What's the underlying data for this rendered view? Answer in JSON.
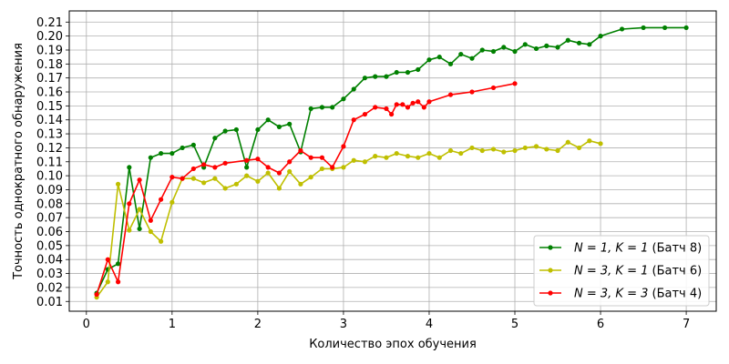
{
  "chart_data": {
    "type": "line",
    "xlabel": "Количество эпох обучения",
    "ylabel": "Точность однократного обнаружения",
    "xlim": [
      -0.2,
      7.35
    ],
    "ylim": [
      0.003,
      0.218
    ],
    "x_ticks": [
      0,
      1,
      2,
      3,
      4,
      5,
      6,
      7
    ],
    "y_ticks": [
      0.01,
      0.02,
      0.03,
      0.04,
      0.05,
      0.06,
      0.07,
      0.08,
      0.09,
      0.1,
      0.11,
      0.12,
      0.13,
      0.14,
      0.15,
      0.16,
      0.17,
      0.18,
      0.19,
      0.2,
      0.21
    ],
    "grid": true,
    "legend_position": "lower-right",
    "series": [
      {
        "name": "N = 1, K = 1 (Батч 8)",
        "legend": {
          "lhs": "N = 1, K = 1",
          "rhs": " (Батч 8)"
        },
        "color": "#008000",
        "x": [
          0.12,
          0.25,
          0.37,
          0.5,
          0.62,
          0.75,
          0.87,
          1.0,
          1.12,
          1.25,
          1.37,
          1.5,
          1.62,
          1.75,
          1.87,
          2.0,
          2.12,
          2.25,
          2.37,
          2.5,
          2.62,
          2.75,
          2.87,
          3.0,
          3.12,
          3.25,
          3.37,
          3.5,
          3.62,
          3.75,
          3.87,
          4.0,
          4.12,
          4.25,
          4.37,
          4.5,
          4.62,
          4.75,
          4.87,
          5.0,
          5.12,
          5.25,
          5.37,
          5.5,
          5.62,
          5.75,
          5.87,
          6.0,
          6.25,
          6.5,
          6.75,
          7.0
        ],
        "y": [
          0.016,
          0.033,
          0.037,
          0.106,
          0.062,
          0.113,
          0.116,
          0.116,
          0.12,
          0.122,
          0.106,
          0.127,
          0.132,
          0.133,
          0.106,
          0.133,
          0.14,
          0.135,
          0.137,
          0.117,
          0.148,
          0.149,
          0.149,
          0.155,
          0.162,
          0.17,
          0.171,
          0.171,
          0.174,
          0.174,
          0.176,
          0.183,
          0.185,
          0.18,
          0.187,
          0.184,
          0.19,
          0.189,
          0.192,
          0.189,
          0.194,
          0.191,
          0.193,
          0.192,
          0.197,
          0.195,
          0.194,
          0.2,
          0.205,
          0.206,
          0.206,
          0.206
        ]
      },
      {
        "name": "N = 3, K = 1 (Батч 6)",
        "legend": {
          "lhs": "N = 3, K = 1",
          "rhs": " (Батч 6)"
        },
        "color": "#bfbf00",
        "x": [
          0.12,
          0.25,
          0.37,
          0.5,
          0.62,
          0.75,
          0.87,
          1.0,
          1.12,
          1.25,
          1.37,
          1.5,
          1.62,
          1.75,
          1.87,
          2.0,
          2.12,
          2.25,
          2.37,
          2.5,
          2.62,
          2.75,
          2.87,
          3.0,
          3.12,
          3.25,
          3.37,
          3.5,
          3.62,
          3.75,
          3.87,
          4.0,
          4.12,
          4.25,
          4.37,
          4.5,
          4.62,
          4.75,
          4.87,
          5.0,
          5.12,
          5.25,
          5.37,
          5.5,
          5.62,
          5.75,
          5.87,
          6.0
        ],
        "y": [
          0.013,
          0.024,
          0.094,
          0.061,
          0.076,
          0.06,
          0.053,
          0.081,
          0.098,
          0.098,
          0.095,
          0.098,
          0.091,
          0.094,
          0.1,
          0.096,
          0.102,
          0.091,
          0.103,
          0.094,
          0.099,
          0.105,
          0.105,
          0.106,
          0.111,
          0.11,
          0.114,
          0.113,
          0.116,
          0.114,
          0.113,
          0.116,
          0.113,
          0.118,
          0.116,
          0.12,
          0.118,
          0.119,
          0.117,
          0.118,
          0.12,
          0.121,
          0.119,
          0.118,
          0.124,
          0.12,
          0.125,
          0.123
        ]
      },
      {
        "name": "N = 3, K = 3 (Батч 4)",
        "legend": {
          "lhs": "N = 3, K = 3",
          "rhs": " (Батч 4)"
        },
        "color": "#ff0000",
        "x": [
          0.12,
          0.25,
          0.37,
          0.5,
          0.62,
          0.75,
          0.87,
          1.0,
          1.12,
          1.25,
          1.37,
          1.5,
          1.62,
          1.87,
          2.0,
          2.12,
          2.25,
          2.37,
          2.5,
          2.62,
          2.75,
          2.87,
          3.0,
          3.12,
          3.25,
          3.37,
          3.5,
          3.56,
          3.62,
          3.69,
          3.75,
          3.81,
          3.87,
          3.94,
          4.0,
          4.25,
          4.5,
          4.75,
          5.0
        ],
        "y": [
          0.015,
          0.04,
          0.024,
          0.08,
          0.097,
          0.068,
          0.083,
          0.099,
          0.098,
          0.105,
          0.108,
          0.106,
          0.109,
          0.111,
          0.112,
          0.106,
          0.102,
          0.11,
          0.118,
          0.113,
          0.113,
          0.106,
          0.121,
          0.14,
          0.144,
          0.149,
          0.148,
          0.144,
          0.151,
          0.151,
          0.149,
          0.152,
          0.153,
          0.149,
          0.153,
          0.158,
          0.16,
          0.163,
          0.166
        ]
      }
    ]
  }
}
